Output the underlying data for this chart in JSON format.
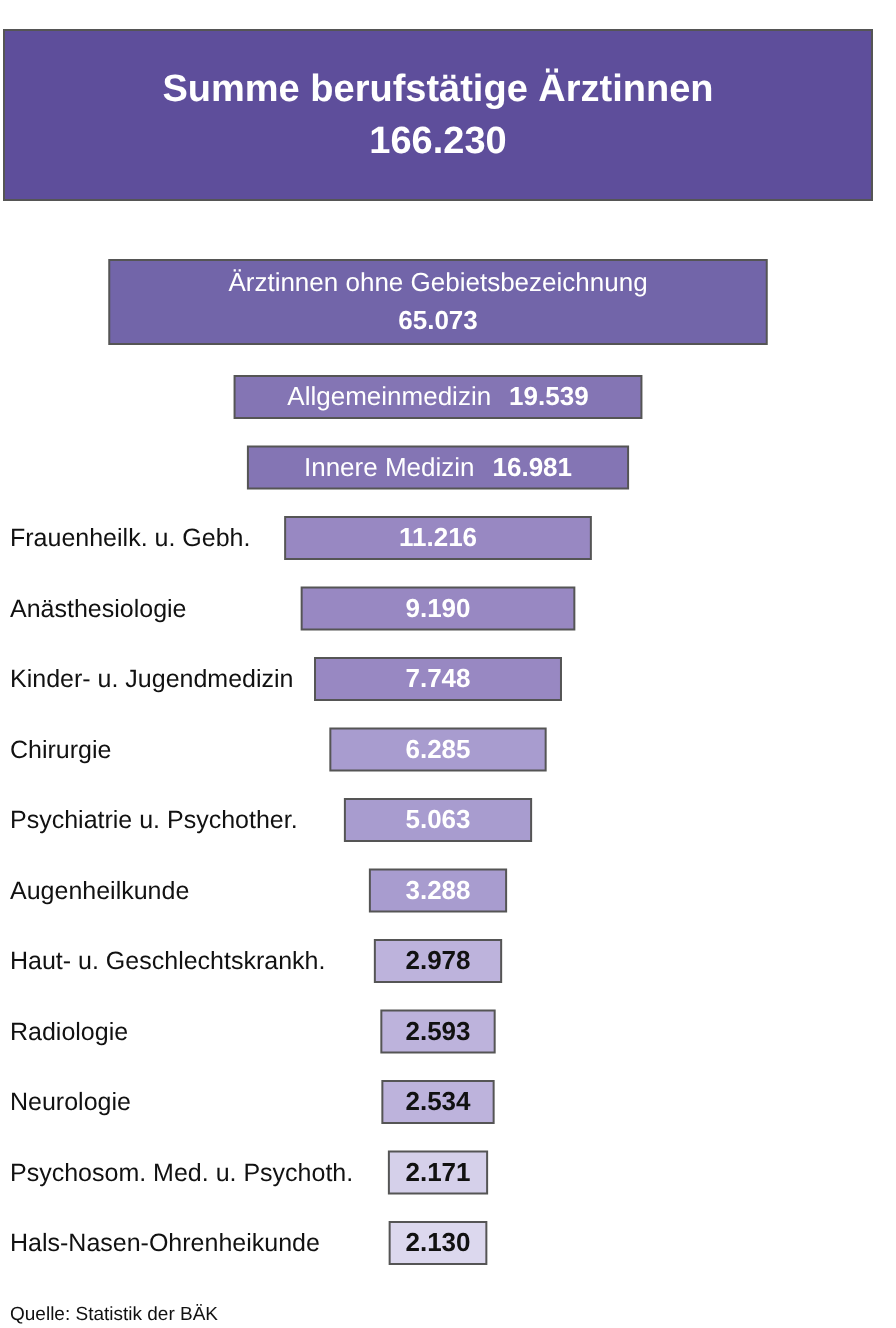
{
  "chart_data": {
    "type": "other",
    "categories": [
      "Summe berufstätige Ärztinnen",
      "Ärztinnen ohne Gebietsbezeichnung",
      "Allgemeinmedizin",
      "Innere Medizin",
      "Frauenheilk. u. Gebh.",
      "Anästhesiologie",
      "Kinder- u. Jugendmedizin",
      "Chirurgie",
      "Psychiatrie u. Psychother.",
      "Augenheilkunde",
      "Haut- u. Geschlechtskrankh.",
      "Radiologie",
      "Neurologie",
      "Psychosom. Med. u. Psychoth.",
      "Hals-Nasen-Ohrenheikunde"
    ],
    "values": [
      166230,
      65073,
      19539,
      16981,
      11216,
      9190,
      7748,
      6285,
      5063,
      3288,
      2978,
      2593,
      2534,
      2171,
      2130
    ],
    "value_labels": [
      "166.230",
      "65.073",
      "19.539",
      "16.981",
      "11.216",
      "9.190",
      "7.748",
      "6.285",
      "5.063",
      "3.288",
      "2.978",
      "2.593",
      "2.534",
      "2.171",
      "2.130"
    ],
    "colors": [
      "#5e4e9b",
      "#7265a9",
      "#8475b4",
      "#8475b4",
      "#9888c2",
      "#9888c2",
      "#9888c2",
      "#a89ccf",
      "#a89ccf",
      "#a89ccf",
      "#bdb3dc",
      "#bdb3dc",
      "#bdb3dc",
      "#d5d0ea",
      "#dcd8ee"
    ],
    "annotations": [
      "Quelle: Statistik der BÄK"
    ]
  }
}
